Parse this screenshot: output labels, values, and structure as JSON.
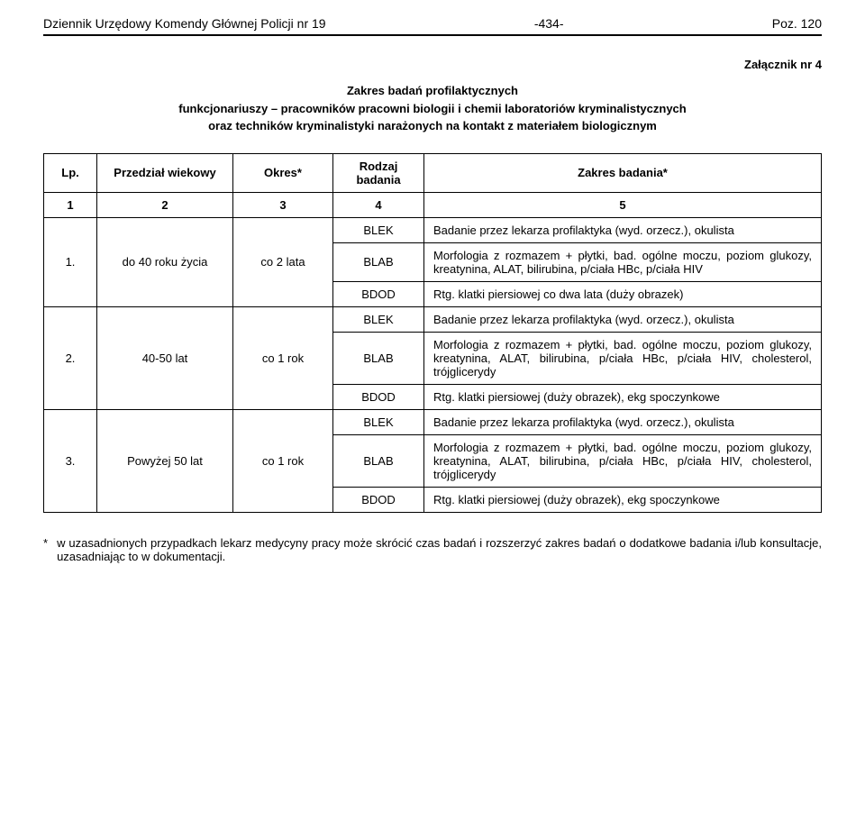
{
  "header": {
    "left": "Dziennik Urzędowy Komendy Głównej Policji nr 19",
    "center": "-434-",
    "right": "Poz. 120"
  },
  "attachment_label": "Załącznik nr 4",
  "title_lines": [
    "Zakres badań profilaktycznych",
    "funkcjonariuszy – pracowników pracowni biologii i chemii laboratoriów kryminalistycznych",
    "oraz techników kryminalistyki narażonych na kontakt z materiałem biologicznym"
  ],
  "col_headers": {
    "lp": "Lp.",
    "przedzial": "Przedział wiekowy",
    "okres": "Okres*",
    "rodzaj": "Rodzaj badania",
    "zakres": "Zakres badania*"
  },
  "num_row": [
    "1",
    "2",
    "3",
    "4",
    "5"
  ],
  "rows": [
    {
      "lp": "1.",
      "przedzial": "do 40 roku życia",
      "okres": "co 2 lata",
      "blek": "Badanie przez lekarza profilaktyka (wyd. orzecz.), okulista",
      "blab": "Morfologia z rozmazem + płytki, bad. ogólne moczu, poziom glukozy, kreatynina, ALAT, bilirubina, p/ciała HBc, p/ciała HIV",
      "bdod": "Rtg. klatki piersiowej co dwa lata (duży obrazek)"
    },
    {
      "lp": "2.",
      "przedzial": "40-50 lat",
      "okres": "co 1 rok",
      "blek": "Badanie przez lekarza profilaktyka (wyd. orzecz.), okulista",
      "blab": "Morfologia z rozmazem + płytki, bad. ogólne moczu, poziom glukozy, kreatynina, ALAT, bilirubina, p/ciała HBc, p/ciała HIV, cholesterol, trójglicerydy",
      "bdod": "Rtg. klatki piersiowej (duży obrazek), ekg spoczynkowe"
    },
    {
      "lp": "3.",
      "przedzial": "Powyżej 50 lat",
      "okres": "co 1 rok",
      "blek": "Badanie przez lekarza profilaktyka (wyd. orzecz.), okulista",
      "blab": "Morfologia z rozmazem + płytki, bad. ogólne moczu, poziom glukozy, kreatynina, ALAT, bilirubina, p/ciała HBc, p/ciała HIV, cholesterol, trójglicerydy",
      "bdod": "Rtg. klatki piersiowej (duży obrazek), ekg spoczynkowe"
    }
  ],
  "labels": {
    "blek": "BLEK",
    "blab": "BLAB",
    "bdod": "BDOD"
  },
  "footnote": {
    "symbol": "*",
    "text": "w uzasadnionych przypadkach lekarz medycyny pracy może skrócić czas badań i rozszerzyć zakres badań o dodatkowe badania i/lub konsultacje, uzasadniając to w dokumentacji."
  },
  "style": {
    "font_family": "Arial",
    "text_color": "#000000",
    "background_color": "#ffffff",
    "border_color": "#000000",
    "header_rule_width": 2,
    "table_border_width": 1,
    "body_font_size": 13,
    "header_font_size": 14
  }
}
